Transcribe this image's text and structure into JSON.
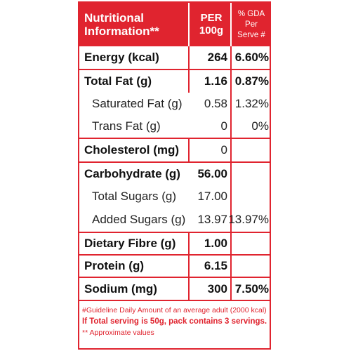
{
  "header": {
    "title_line1": "Nutritional",
    "title_line2": "Information**",
    "per_line1": "PER",
    "per_line2": "100g",
    "gda_line1": "% GDA Per",
    "gda_line2": "Serve #"
  },
  "rows": [
    {
      "label": "Energy (kcal)",
      "per100g": "264",
      "gda": "6.60%"
    },
    {
      "label": "Total Fat (g)",
      "per100g": "1.16",
      "gda": "0.87%"
    },
    {
      "label": "Saturated Fat (g)",
      "per100g": "0.58",
      "gda": "1.32%"
    },
    {
      "label": "Trans Fat (g)",
      "per100g": "0",
      "gda": "0%"
    },
    {
      "label": "Cholesterol (mg)",
      "per100g": "0",
      "gda": ""
    },
    {
      "label": "Carbohydrate (g)",
      "per100g": "56.00",
      "gda": ""
    },
    {
      "label": "Total Sugars (g)",
      "per100g": "17.00",
      "gda": ""
    },
    {
      "label": "Added Sugars (g)",
      "per100g": "13.97",
      "gda": "13.97%"
    },
    {
      "label": "Dietary Fibre (g)",
      "per100g": "1.00",
      "gda": ""
    },
    {
      "label": "Protein (g)",
      "per100g": "6.15",
      "gda": ""
    },
    {
      "label": "Sodium (mg)",
      "per100g": "300",
      "gda": "7.50%"
    }
  ],
  "footer": {
    "guideline": "#Guideline Daily Amount of an average adult (2000 kcal)",
    "serving": "If Total serving is 50g, pack contains 3 servings.",
    "approx": "** Approximate values"
  },
  "colors": {
    "accent": "#e0242f",
    "text": "#111111",
    "background": "#ffffff"
  }
}
